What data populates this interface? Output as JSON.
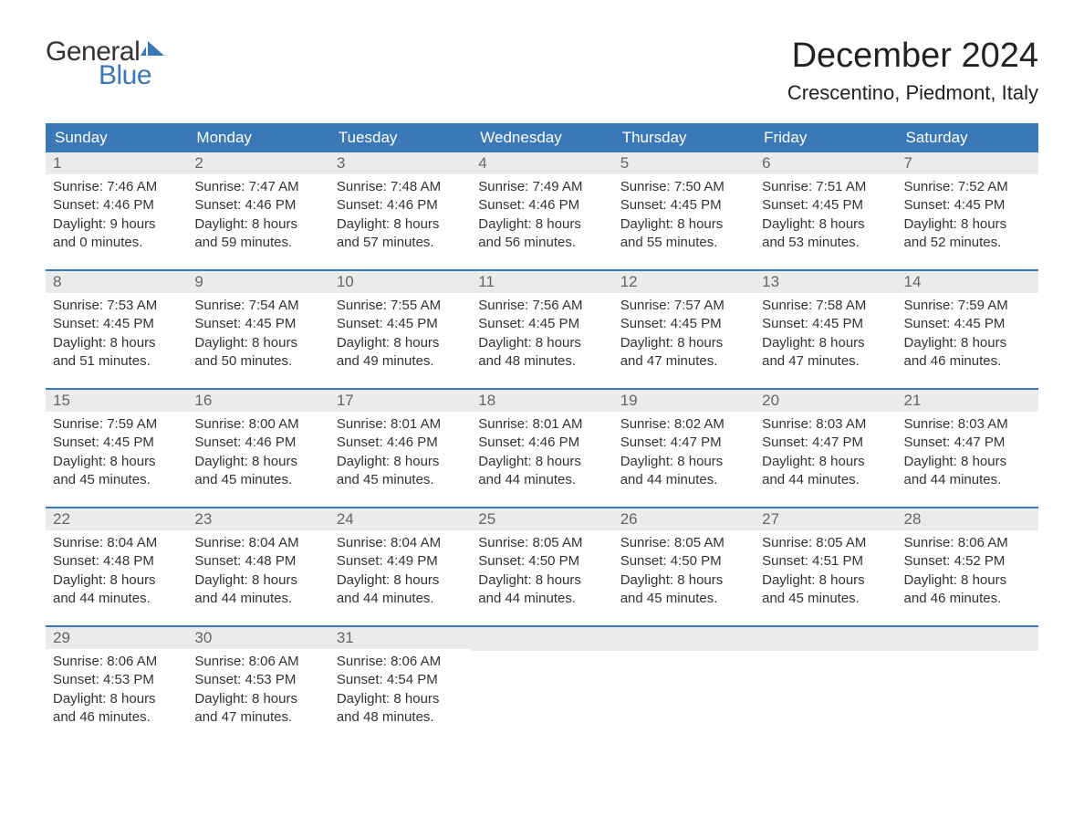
{
  "logo": {
    "text_general": "General",
    "text_blue": "Blue",
    "icon_color": "#3b78b8"
  },
  "header": {
    "month_title": "December 2024",
    "location": "Crescentino, Piedmont, Italy"
  },
  "colors": {
    "header_bg": "#3b78b8",
    "header_text": "#ffffff",
    "day_number_bg": "#ebebeb",
    "day_number_color": "#666666",
    "body_text": "#333333",
    "background": "#ffffff",
    "week_border": "#3b78b8"
  },
  "weekdays": [
    "Sunday",
    "Monday",
    "Tuesday",
    "Wednesday",
    "Thursday",
    "Friday",
    "Saturday"
  ],
  "labels": {
    "sunrise": "Sunrise:",
    "sunset": "Sunset:",
    "daylight": "Daylight:"
  },
  "weeks": [
    [
      {
        "day": "1",
        "sunrise": "7:46 AM",
        "sunset": "4:46 PM",
        "daylight_h": "9 hours",
        "daylight_m": "and 0 minutes."
      },
      {
        "day": "2",
        "sunrise": "7:47 AM",
        "sunset": "4:46 PM",
        "daylight_h": "8 hours",
        "daylight_m": "and 59 minutes."
      },
      {
        "day": "3",
        "sunrise": "7:48 AM",
        "sunset": "4:46 PM",
        "daylight_h": "8 hours",
        "daylight_m": "and 57 minutes."
      },
      {
        "day": "4",
        "sunrise": "7:49 AM",
        "sunset": "4:46 PM",
        "daylight_h": "8 hours",
        "daylight_m": "and 56 minutes."
      },
      {
        "day": "5",
        "sunrise": "7:50 AM",
        "sunset": "4:45 PM",
        "daylight_h": "8 hours",
        "daylight_m": "and 55 minutes."
      },
      {
        "day": "6",
        "sunrise": "7:51 AM",
        "sunset": "4:45 PM",
        "daylight_h": "8 hours",
        "daylight_m": "and 53 minutes."
      },
      {
        "day": "7",
        "sunrise": "7:52 AM",
        "sunset": "4:45 PM",
        "daylight_h": "8 hours",
        "daylight_m": "and 52 minutes."
      }
    ],
    [
      {
        "day": "8",
        "sunrise": "7:53 AM",
        "sunset": "4:45 PM",
        "daylight_h": "8 hours",
        "daylight_m": "and 51 minutes."
      },
      {
        "day": "9",
        "sunrise": "7:54 AM",
        "sunset": "4:45 PM",
        "daylight_h": "8 hours",
        "daylight_m": "and 50 minutes."
      },
      {
        "day": "10",
        "sunrise": "7:55 AM",
        "sunset": "4:45 PM",
        "daylight_h": "8 hours",
        "daylight_m": "and 49 minutes."
      },
      {
        "day": "11",
        "sunrise": "7:56 AM",
        "sunset": "4:45 PM",
        "daylight_h": "8 hours",
        "daylight_m": "and 48 minutes."
      },
      {
        "day": "12",
        "sunrise": "7:57 AM",
        "sunset": "4:45 PM",
        "daylight_h": "8 hours",
        "daylight_m": "and 47 minutes."
      },
      {
        "day": "13",
        "sunrise": "7:58 AM",
        "sunset": "4:45 PM",
        "daylight_h": "8 hours",
        "daylight_m": "and 47 minutes."
      },
      {
        "day": "14",
        "sunrise": "7:59 AM",
        "sunset": "4:45 PM",
        "daylight_h": "8 hours",
        "daylight_m": "and 46 minutes."
      }
    ],
    [
      {
        "day": "15",
        "sunrise": "7:59 AM",
        "sunset": "4:45 PM",
        "daylight_h": "8 hours",
        "daylight_m": "and 45 minutes."
      },
      {
        "day": "16",
        "sunrise": "8:00 AM",
        "sunset": "4:46 PM",
        "daylight_h": "8 hours",
        "daylight_m": "and 45 minutes."
      },
      {
        "day": "17",
        "sunrise": "8:01 AM",
        "sunset": "4:46 PM",
        "daylight_h": "8 hours",
        "daylight_m": "and 45 minutes."
      },
      {
        "day": "18",
        "sunrise": "8:01 AM",
        "sunset": "4:46 PM",
        "daylight_h": "8 hours",
        "daylight_m": "and 44 minutes."
      },
      {
        "day": "19",
        "sunrise": "8:02 AM",
        "sunset": "4:47 PM",
        "daylight_h": "8 hours",
        "daylight_m": "and 44 minutes."
      },
      {
        "day": "20",
        "sunrise": "8:03 AM",
        "sunset": "4:47 PM",
        "daylight_h": "8 hours",
        "daylight_m": "and 44 minutes."
      },
      {
        "day": "21",
        "sunrise": "8:03 AM",
        "sunset": "4:47 PM",
        "daylight_h": "8 hours",
        "daylight_m": "and 44 minutes."
      }
    ],
    [
      {
        "day": "22",
        "sunrise": "8:04 AM",
        "sunset": "4:48 PM",
        "daylight_h": "8 hours",
        "daylight_m": "and 44 minutes."
      },
      {
        "day": "23",
        "sunrise": "8:04 AM",
        "sunset": "4:48 PM",
        "daylight_h": "8 hours",
        "daylight_m": "and 44 minutes."
      },
      {
        "day": "24",
        "sunrise": "8:04 AM",
        "sunset": "4:49 PM",
        "daylight_h": "8 hours",
        "daylight_m": "and 44 minutes."
      },
      {
        "day": "25",
        "sunrise": "8:05 AM",
        "sunset": "4:50 PM",
        "daylight_h": "8 hours",
        "daylight_m": "and 44 minutes."
      },
      {
        "day": "26",
        "sunrise": "8:05 AM",
        "sunset": "4:50 PM",
        "daylight_h": "8 hours",
        "daylight_m": "and 45 minutes."
      },
      {
        "day": "27",
        "sunrise": "8:05 AM",
        "sunset": "4:51 PM",
        "daylight_h": "8 hours",
        "daylight_m": "and 45 minutes."
      },
      {
        "day": "28",
        "sunrise": "8:06 AM",
        "sunset": "4:52 PM",
        "daylight_h": "8 hours",
        "daylight_m": "and 46 minutes."
      }
    ],
    [
      {
        "day": "29",
        "sunrise": "8:06 AM",
        "sunset": "4:53 PM",
        "daylight_h": "8 hours",
        "daylight_m": "and 46 minutes."
      },
      {
        "day": "30",
        "sunrise": "8:06 AM",
        "sunset": "4:53 PM",
        "daylight_h": "8 hours",
        "daylight_m": "and 47 minutes."
      },
      {
        "day": "31",
        "sunrise": "8:06 AM",
        "sunset": "4:54 PM",
        "daylight_h": "8 hours",
        "daylight_m": "and 48 minutes."
      },
      null,
      null,
      null,
      null
    ]
  ]
}
